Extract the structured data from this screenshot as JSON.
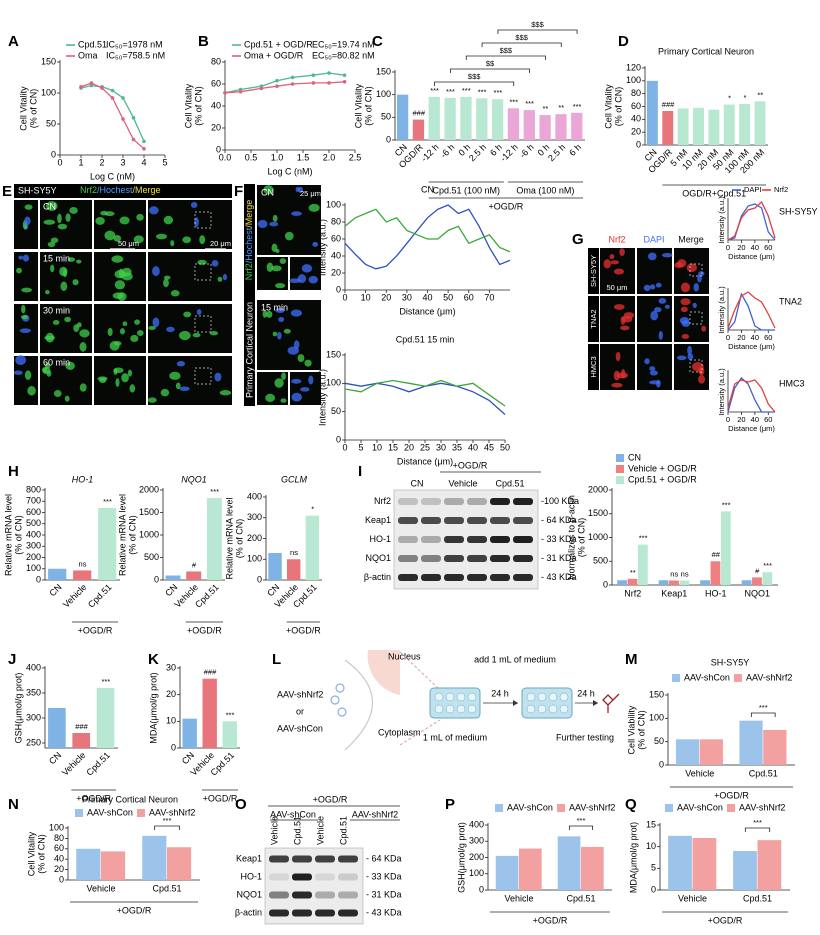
{
  "chart_data": [
    {
      "type": "line",
      "panel": "A",
      "xlabel": "Log C (nM)",
      "ylabel": [
        "Cell Vitality",
        "(% of CN)"
      ],
      "markers": true,
      "x": [
        1,
        1.5,
        2,
        2.5,
        3,
        3.5,
        4
      ],
      "series": [
        {
          "name": "Cpd.51",
          "note": "IC₅₀=1978 nM",
          "color": "#4fb993",
          "values": [
            108,
            112,
            110,
            104,
            92,
            60,
            22
          ]
        },
        {
          "name": "Oma",
          "note": "IC₅₀=758.5 nM",
          "color": "#e0607e",
          "values": [
            110,
            116,
            108,
            92,
            58,
            25,
            10
          ]
        }
      ],
      "xlim": [
        0,
        5
      ],
      "xticks": [
        0,
        1,
        2,
        3,
        4,
        5
      ],
      "ylim": [
        0,
        150
      ],
      "yticks": [
        0,
        50,
        100,
        150
      ]
    },
    {
      "type": "line",
      "panel": "B",
      "xlabel": "Log C (nM)",
      "ylabel": [
        "Cell Vitality",
        "(% of CN)"
      ],
      "markers": true,
      "x": [
        0,
        0.3,
        0.7,
        1,
        1.3,
        1.7,
        2,
        2.3
      ],
      "series": [
        {
          "name": "Cpd.51 + OGD/R",
          "note": "EC₅₀=19.74 nM",
          "color": "#4fb993",
          "values": [
            52,
            55,
            58,
            63,
            66,
            68,
            70,
            68
          ]
        },
        {
          "name": "Oma + OGD/R",
          "note": "EC₅₀=80.82 nM",
          "color": "#e0607e",
          "values": [
            52,
            53,
            56,
            58,
            60,
            61,
            61,
            62
          ]
        }
      ],
      "xlim": [
        0,
        2.5
      ],
      "xticks": [
        {
          "value": 0,
          "label": "0.0"
        },
        0.5,
        {
          "value": 1,
          "label": "1.0"
        },
        1.5,
        {
          "value": 2,
          "label": "2.0"
        },
        2.5
      ],
      "ylim": [
        0,
        80
      ],
      "yticks": [
        0,
        20,
        40,
        60,
        80
      ]
    },
    {
      "type": "bar",
      "panel": "C",
      "ylabel": [
        "Cell Vitality",
        "(% of CN)"
      ],
      "categories": [
        "CN",
        "OGD/R",
        "-12 h",
        "-6 h",
        "0 h",
        "2.5 h",
        "6 h",
        "-12 h",
        "-6 h",
        "0 h",
        "2.5 h",
        "6 h"
      ],
      "values": [
        100,
        45,
        95,
        93,
        95,
        92,
        90,
        70,
        66,
        55,
        57,
        60
      ],
      "colors": [
        "#7fb2e5",
        "#e8747c",
        "#b8e8d2",
        "#b8e8d2",
        "#b8e8d2",
        "#b8e8d2",
        "#b8e8d2",
        "#e9a6d6",
        "#e9a6d6",
        "#e9a6d6",
        "#e9a6d6",
        "#e9a6d6"
      ],
      "annotations": [
        null,
        "###",
        "***",
        "***",
        "***",
        "***",
        "***",
        "***",
        "***",
        "**",
        "**",
        "***"
      ],
      "comparisons": [
        "$$$",
        "$$",
        "$$$",
        "$$$",
        "$$$"
      ],
      "group_labels": [
        "Cpd.51 (100 nM)",
        "Oma (100 nM)",
        "+OGD/R"
      ],
      "ylim": [
        0,
        150
      ],
      "yticks": [
        0,
        50,
        100,
        150
      ]
    },
    {
      "type": "bar",
      "panel": "D",
      "title": "Primary Cortical Neuron",
      "ylabel": [
        "Cell Vitality",
        "(% of CN)"
      ],
      "categories": [
        "CN",
        "OGD/R",
        "5 nM",
        "10 nM",
        "20 nM",
        "50 nM",
        "100 nM",
        "200 nM"
      ],
      "values": [
        100,
        53,
        57,
        58,
        55,
        63,
        64,
        68
      ],
      "colors": [
        "#7fb2e5",
        "#e8747c",
        "#b8e8d2",
        "#b8e8d2",
        "#b8e8d2",
        "#b8e8d2",
        "#b8e8d2",
        "#b8e8d2"
      ],
      "annotations": [
        null,
        "###",
        null,
        null,
        null,
        "*",
        "*",
        "**"
      ],
      "group_labels": [
        "OGD/R+Cpd.51"
      ],
      "ylim": [
        0,
        120
      ],
      "yticks": [
        0,
        20,
        40,
        60,
        80,
        100,
        120
      ]
    },
    {
      "type": "line",
      "title": "CN",
      "xlabel": "Distance (μm)",
      "ylabel": [
        "Intensity (a.u.)"
      ],
      "x": [
        0,
        5,
        10,
        15,
        20,
        25,
        30,
        35,
        40,
        45,
        50,
        55,
        60,
        65,
        70,
        75,
        80
      ],
      "series": [
        {
          "color": "#2d4fbf",
          "values": [
            55,
            42,
            30,
            25,
            28,
            40,
            55,
            70,
            85,
            95,
            100,
            90,
            95,
            75,
            50,
            30,
            35
          ]
        },
        {
          "color": "#3aa83a",
          "values": [
            75,
            85,
            90,
            95,
            80,
            85,
            70,
            65,
            60,
            60,
            70,
            75,
            55,
            60,
            65,
            50,
            45
          ]
        }
      ],
      "xlim": [
        0,
        80
      ],
      "xticks": [
        0,
        10,
        20,
        30,
        40,
        50,
        60,
        70
      ],
      "ylim": [
        0,
        100
      ],
      "yticks": [
        0,
        20,
        40,
        60,
        80,
        100
      ]
    },
    {
      "type": "line",
      "title": "Cpd.51 15 min",
      "xlabel": "Distance (μm)",
      "ylabel": [
        "Intensity (a.u.)"
      ],
      "x": [
        0,
        5,
        10,
        15,
        20,
        25,
        30,
        35,
        40,
        45,
        50
      ],
      "series": [
        {
          "color": "#2d4fbf",
          "values": [
            100,
            95,
            100,
            95,
            85,
            95,
            100,
            95,
            85,
            70,
            45
          ]
        },
        {
          "color": "#3aa83a",
          "values": [
            90,
            85,
            100,
            105,
            100,
            95,
            105,
            95,
            100,
            80,
            60
          ]
        }
      ],
      "xlim": [
        0,
        50
      ],
      "xticks": [
        0,
        5,
        10,
        15,
        20,
        25,
        30,
        35,
        40,
        45,
        50
      ],
      "ylim": [
        0,
        150
      ],
      "yticks": [
        0,
        50,
        100,
        150
      ]
    },
    {
      "type": "line",
      "title": "SH-SY5Y",
      "xlabel": "Distance (μm)",
      "ylabel": [
        "Intensity (a.u.)"
      ],
      "x": [
        0,
        10,
        20,
        30,
        40,
        50,
        60,
        70
      ],
      "series": [
        {
          "name": "DAPI",
          "color": "#4060d0",
          "values": [
            0,
            5,
            60,
            85,
            90,
            80,
            20,
            0
          ]
        },
        {
          "name": "Nrf2",
          "color": "#e04040",
          "values": [
            0,
            10,
            55,
            75,
            80,
            95,
            60,
            5
          ]
        }
      ],
      "xlim": [
        0,
        70
      ],
      "xticks": [
        0,
        20,
        40,
        60
      ],
      "ylim": [
        0,
        100
      ]
    },
    {
      "type": "line",
      "title": "TNA2",
      "xlabel": "Distance (μm)",
      "ylabel": [
        "Intensity (a.u.)"
      ],
      "x": [
        0,
        10,
        20,
        30,
        40,
        50,
        60,
        70
      ],
      "series": [
        {
          "color": "#4060d0",
          "values": [
            0,
            20,
            90,
            60,
            10,
            0,
            0,
            0
          ]
        },
        {
          "color": "#e04040",
          "values": [
            5,
            50,
            85,
            95,
            80,
            70,
            40,
            5
          ]
        }
      ],
      "xlim": [
        0,
        70
      ],
      "xticks": [
        0,
        20,
        40,
        60
      ],
      "ylim": [
        0,
        100
      ]
    },
    {
      "type": "line",
      "title": "HMC3",
      "xlabel": "Distance (μm)",
      "ylabel": [
        "Intensity (a.u.)"
      ],
      "x": [
        0,
        10,
        20,
        30,
        40,
        50,
        60,
        70
      ],
      "series": [
        {
          "color": "#4060d0",
          "values": [
            0,
            60,
            85,
            70,
            30,
            0,
            0,
            0
          ]
        },
        {
          "color": "#e04040",
          "values": [
            10,
            70,
            80,
            75,
            80,
            60,
            20,
            0
          ]
        }
      ],
      "xlim": [
        0,
        70
      ],
      "xticks": [
        0,
        20,
        40,
        60
      ],
      "ylim": [
        0,
        100
      ]
    },
    {
      "type": "bar",
      "panel": "H",
      "title": "HO-1",
      "title_style": "italic",
      "ylabel": [
        "Relative mRNA level",
        "(% of CN)"
      ],
      "categories": [
        "CN",
        "Vehicle",
        "Cpd.51"
      ],
      "values": [
        100,
        85,
        640
      ],
      "colors": [
        "#7fb2e5",
        "#e8747c",
        "#b8e8d2"
      ],
      "annotations": [
        null,
        "ns",
        "***"
      ],
      "group_labels": [
        "+OGD/R"
      ],
      "ylim": [
        0,
        800
      ],
      "yticks": [
        0,
        100,
        200,
        300,
        400,
        500,
        600,
        700,
        800
      ]
    },
    {
      "type": "bar",
      "title": "NQO1",
      "title_style": "italic",
      "ylabel": [
        "Relative mRNA level",
        "(% of CN)"
      ],
      "categories": [
        "CN",
        "Vehicle",
        "Cpd.51"
      ],
      "values": [
        100,
        190,
        1820
      ],
      "colors": [
        "#7fb2e5",
        "#e8747c",
        "#b8e8d2"
      ],
      "annotations": [
        null,
        "#",
        "***"
      ],
      "group_labels": [
        "+OGD/R"
      ],
      "ylim": [
        0,
        2000
      ],
      "yticks": [
        0,
        500,
        1000,
        1500,
        2000
      ]
    },
    {
      "type": "bar",
      "title": "GCLM",
      "title_style": "italic",
      "ylabel": [
        "Relative mRNA level",
        "(% of CN)"
      ],
      "categories": [
        "CN",
        "Vehicle",
        "Cpd.51"
      ],
      "values": [
        130,
        100,
        310
      ],
      "colors": [
        "#7fb2e5",
        "#e8747c",
        "#b8e8d2"
      ],
      "annotations": [
        null,
        "ns",
        "*"
      ],
      "group_labels": [
        "+OGD/R"
      ],
      "ylim": [
        0,
        400
      ],
      "yticks": [
        0,
        100,
        200,
        300,
        400
      ]
    },
    {
      "type": "bar",
      "ylabel": [
        "Normalizes to β-actin",
        "(% of CN)"
      ],
      "categories": [
        "Nrf2",
        "Keap1",
        "HO-1",
        "NQO1"
      ],
      "series": [
        {
          "name": "CN",
          "color": "#7fb2e5",
          "values": [
            100,
            100,
            100,
            100
          ]
        },
        {
          "name": "Vehicle + OGD/R",
          "color": "#f08080",
          "values": [
            130,
            95,
            500,
            160
          ],
          "annotations": [
            "**",
            "ns",
            "##",
            "#"
          ]
        },
        {
          "name": "Cpd.51 + OGD/R",
          "color": "#b8e8d2",
          "values": [
            850,
            95,
            1550,
            270
          ],
          "annotations": [
            "***",
            "ns",
            "***",
            "***"
          ]
        }
      ],
      "ylim": [
        0,
        2000
      ],
      "yticks": [
        0,
        500,
        1000,
        1500,
        2000
      ]
    },
    {
      "type": "bar",
      "panel": "J",
      "ylabel": [
        "GSH(μmol/g prot)"
      ],
      "categories": [
        "CN",
        "Vehicle",
        "Cpd.51"
      ],
      "values": [
        320,
        270,
        360
      ],
      "colors": [
        "#7fb2e5",
        "#e8747c",
        "#b8e8d2"
      ],
      "annotations": [
        null,
        "###",
        "***"
      ],
      "group_labels": [
        "+OGD/R"
      ],
      "ylim": [
        240,
        400
      ],
      "yticks": [
        250,
        300,
        350,
        400
      ]
    },
    {
      "type": "bar",
      "panel": "K",
      "ylabel": [
        "MDA(μmol/g prot)"
      ],
      "categories": [
        "CN",
        "Vehicle",
        "Cpd.51"
      ],
      "values": [
        11,
        26,
        10
      ],
      "colors": [
        "#7fb2e5",
        "#e8747c",
        "#b8e8d2"
      ],
      "annotations": [
        null,
        "###",
        "***"
      ],
      "group_labels": [
        "+OGD/R"
      ],
      "ylim": [
        0,
        30
      ],
      "yticks": [
        0,
        10,
        20,
        30
      ]
    },
    {
      "type": "bar",
      "panel": "M",
      "title": "SH-SY5Y",
      "ylabel": [
        "Cell Viability",
        "(% of CN)"
      ],
      "categories": [
        "Vehicle",
        "Cpd.51"
      ],
      "series": [
        {
          "name": "AAV-shCon",
          "color": "#9cc3ea",
          "values": [
            55,
            95
          ]
        },
        {
          "name": "AAV-shNrf2",
          "color": "#f2a0a0",
          "values": [
            55,
            75
          ]
        }
      ],
      "comparisons": [
        "***"
      ],
      "group_labels": [
        "+OGD/R"
      ],
      "ylim": [
        0,
        150
      ],
      "yticks": [
        0,
        50,
        100,
        150
      ]
    },
    {
      "type": "bar",
      "panel": "N",
      "title": "Primary Cortical Neuron",
      "ylabel": [
        "Cell Vitality",
        "(% of CN)"
      ],
      "categories": [
        "Vehicle",
        "Cpd.51"
      ],
      "series": [
        {
          "name": "AAV-shCon",
          "color": "#9cc3ea",
          "values": [
            60,
            85
          ]
        },
        {
          "name": "AAV-shNrf2",
          "color": "#f2a0a0",
          "values": [
            55,
            63
          ]
        }
      ],
      "comparisons": [
        "***"
      ],
      "group_labels": [
        "+OGD/R"
      ],
      "ylim": [
        0,
        100
      ],
      "yticks": [
        0,
        20,
        40,
        60,
        80,
        100
      ]
    },
    {
      "type": "bar",
      "panel": "P",
      "ylabel": [
        "GSH(μmol/g prot)"
      ],
      "categories": [
        "Vehicle",
        "Cpd.51"
      ],
      "series": [
        {
          "name": "AAV-shCon",
          "color": "#9cc3ea",
          "values": [
            210,
            330
          ]
        },
        {
          "name": "AAV-shNrf2",
          "color": "#f2a0a0",
          "values": [
            255,
            265
          ]
        }
      ],
      "comparisons": [
        "***"
      ],
      "group_labels": [
        "+OGD/R"
      ],
      "ylim": [
        0,
        400
      ],
      "yticks": [
        0,
        100,
        200,
        300,
        400
      ]
    },
    {
      "type": "bar",
      "panel": "Q",
      "ylabel": [
        "MDA(μmol/g prot)"
      ],
      "categories": [
        "Vehicle",
        "Cpd.51"
      ],
      "series": [
        {
          "name": "AAV-shCon",
          "color": "#9cc3ea",
          "values": [
            12.5,
            9
          ]
        },
        {
          "name": "AAV-shNrf2",
          "color": "#f2a0a0",
          "values": [
            12,
            11.5
          ]
        }
      ],
      "comparisons": [
        "***"
      ],
      "group_labels": [
        "+OGD/R"
      ],
      "ylim": [
        0,
        15
      ],
      "yticks": [
        0,
        5,
        10,
        15
      ]
    }
  ],
  "figure": {
    "E": {
      "panel": "E",
      "cell": "SH-SY5Y",
      "stains": [
        "Nrf2",
        "/Hochest",
        "/Merge"
      ],
      "times": [
        "CN",
        "15 min",
        "30 min",
        "60 min"
      ],
      "scales": [
        "50 μm",
        "20 μm"
      ]
    },
    "F": {
      "panel": "F",
      "stains": [
        "Nrf2",
        "/Hochest",
        "/Merge"
      ],
      "cell": "Primary Cortical Neuron",
      "times": [
        "CN",
        "15 min"
      ],
      "scale": "25 μm"
    },
    "G": {
      "panel": "G",
      "columns": [
        "Nrf2",
        "DAPI",
        "Merge"
      ],
      "rows": [
        "SH-SY5Y",
        "TNA2",
        "HMC3"
      ],
      "scale": "50 μm"
    },
    "I": {
      "panel": "I",
      "treatment": "+OGD/R",
      "lanes": [
        "CN",
        "Vehicle",
        "Cpd.51"
      ],
      "proteins": [
        "Nrf2",
        "Keap1",
        "HO-1",
        "NQO1",
        "β-actin"
      ],
      "sizes": [
        "-100 KDa",
        "- 64 KDa",
        "- 33 KDa",
        "- 31 KDa",
        "- 43 KDa"
      ]
    },
    "L": {
      "panel": "L",
      "constructs": [
        "AAV-shNrf2",
        "or",
        "AAV-shCon"
      ],
      "nucleus": "Nucleus",
      "cytoplasm": "Cytoplasm",
      "step1": "1 mL of medium",
      "step2": "add 1 mL of medium",
      "times": [
        "24 h",
        "24 h"
      ],
      "end": "Further testing"
    },
    "O": {
      "panel": "O",
      "treatment": "+OGD/R",
      "groups": [
        "AAV-shCon",
        "AAV-shNrf2"
      ],
      "lanes": [
        "Vehicle",
        "Cpd.51",
        "Vehicle",
        "Cpd.51"
      ],
      "proteins": [
        "Keap1",
        "HO-1",
        "NQO1",
        "β-actin"
      ],
      "sizes": [
        "- 64 KDa",
        "- 33 KDa",
        "- 31 KDa",
        "- 43 KDa"
      ]
    }
  }
}
